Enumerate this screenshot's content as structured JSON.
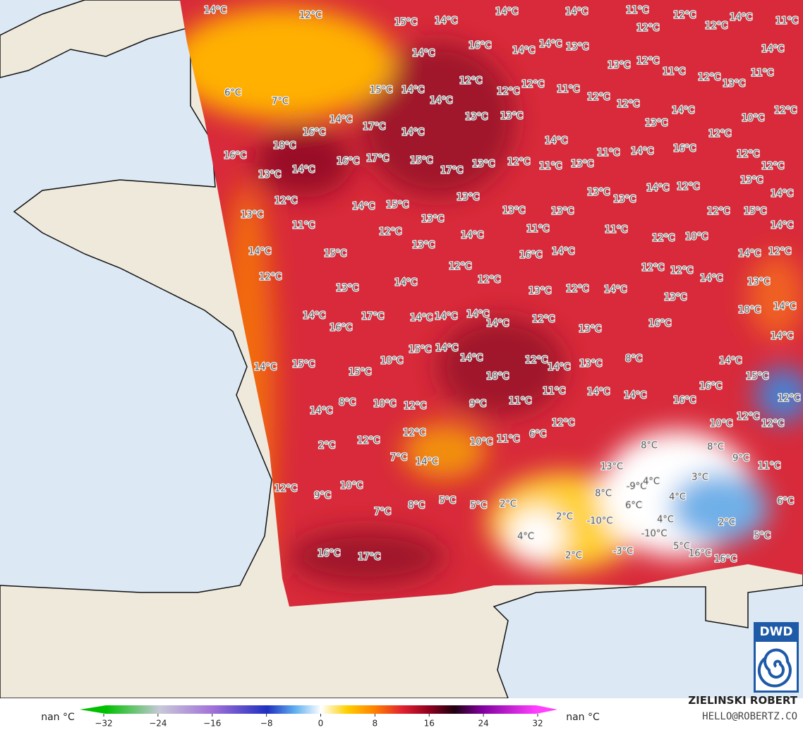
{
  "map": {
    "temperature_labels": [
      "14°C",
      "12°C",
      "15°C",
      "14°C",
      "14°C",
      "14°C",
      "11°C",
      "12°C",
      "14°C",
      "11°C",
      "16°C",
      "14°C",
      "14°C",
      "14°C",
      "13°C",
      "12°C",
      "12°C",
      "14°C",
      "6°C",
      "7°C",
      "15°C",
      "14°C",
      "12°C",
      "12°C",
      "12°C",
      "11°C",
      "12°C",
      "12°C",
      "13°C",
      "12°C",
      "11°C",
      "12°C",
      "11°C",
      "13°C",
      "14°C",
      "14°C",
      "12°C",
      "10°C",
      "14°C",
      "17°C",
      "14°C",
      "13°C",
      "13°C",
      "13°C",
      "12°C",
      "16°C",
      "18°C",
      "16°C",
      "13°C",
      "14°C",
      "16°C",
      "17°C",
      "15°C",
      "17°C",
      "13°C",
      "12°C",
      "14°C",
      "11°C",
      "13°C",
      "11°C",
      "14°C",
      "16°C",
      "12°C",
      "12°C",
      "13°C",
      "14°C",
      "12°C",
      "14°C",
      "15°C",
      "13°C",
      "13°C",
      "13°C",
      "14°C",
      "12°C",
      "13°C",
      "11°C",
      "13°C",
      "13°C",
      "13°C",
      "12°C",
      "15°C",
      "14°C",
      "12°C",
      "14°C",
      "11°C",
      "11°C",
      "12°C",
      "10°C",
      "14°C",
      "15°C",
      "13°C",
      "16°C",
      "14°C",
      "14°C",
      "12°C",
      "12°C",
      "12°C",
      "12°C",
      "12°C",
      "14°C",
      "13°C",
      "14°C",
      "12°C",
      "13°C",
      "12°C",
      "14°C",
      "13°C",
      "13°C",
      "14°C",
      "17°C",
      "14°C",
      "14°C",
      "14°C",
      "14°C",
      "12°C",
      "13°C",
      "16°C",
      "18°C",
      "14°C",
      "14°C",
      "16°C",
      "15°C",
      "14°C",
      "14°C",
      "12°C",
      "13°C",
      "8°C",
      "10°C",
      "14°C",
      "15°C",
      "15°C",
      "18°C",
      "14°C",
      "14°C",
      "15°C",
      "11°C",
      "14°C",
      "14°C",
      "16°C",
      "16°C",
      "11°C",
      "12°C",
      "8°C",
      "10°C",
      "12°C",
      "9°C",
      "14°C",
      "12°C",
      "12°C",
      "6°C",
      "11°C",
      "10°C",
      "8°C",
      "10°C",
      "12°C",
      "12°C",
      "2°C",
      "12°C",
      "8°C",
      "7°C",
      "14°C",
      "13°C",
      "9°C",
      "11°C",
      "12°C",
      "10°C",
      "9°C",
      "7°C",
      "8°C",
      "5°C",
      "5°C",
      "2°C",
      "8°C",
      "-9°C",
      "4°C",
      "3°C",
      "4°C",
      "6°C",
      "6°C",
      "2°C",
      "-10°C",
      "4°C",
      "2°C",
      "4°C",
      "-10°C",
      "5°C",
      "5°C",
      "2°C",
      "-3°C",
      "16°C",
      "16°C",
      "16°C",
      "17°C"
    ]
  },
  "colorbar": {
    "left_label": "nan °C",
    "right_label": "nan °C",
    "ticks": [
      {
        "value": -32,
        "label": "−32"
      },
      {
        "value": -24,
        "label": "−24"
      },
      {
        "value": -16,
        "label": "−16"
      },
      {
        "value": -8,
        "label": "−8"
      },
      0,
      8,
      16,
      24,
      32
    ]
  },
  "credit": {
    "author": "ZIELINSKI ROBERT",
    "contact": "HELLO@ROBERTZ.CO"
  },
  "logo": "DWD"
}
